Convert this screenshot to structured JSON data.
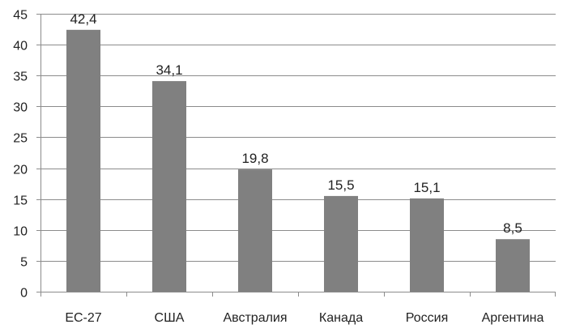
{
  "chart_data": {
    "type": "bar",
    "categories": [
      "ЕС-27",
      "США",
      "Австралия",
      "Канада",
      "Россия",
      "Аргентина"
    ],
    "values": [
      42.4,
      34.1,
      19.8,
      15.5,
      15.1,
      8.5
    ],
    "data_labels": [
      "42,4",
      "34,1",
      "19,8",
      "15,5",
      "15,1",
      "8,5"
    ],
    "title": "",
    "xlabel": "",
    "ylabel": "",
    "ylim": [
      0,
      45
    ],
    "yticks": [
      0,
      5,
      10,
      15,
      20,
      25,
      30,
      35,
      40,
      45
    ],
    "grid": true,
    "legend": "none",
    "bar_color": "#808080",
    "grid_color": "#8c8c8c"
  }
}
